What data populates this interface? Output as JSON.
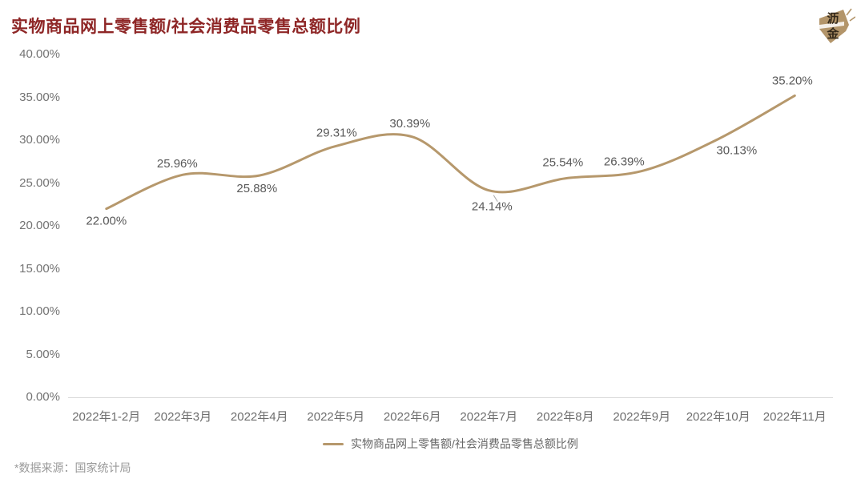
{
  "header": {
    "title": "实物商品网上零售额/社会消费品零售总额比例",
    "logo": {
      "name": "lijin-logo",
      "text_top": "沥",
      "text_bottom": "金",
      "gold": "#b3956a",
      "ink": "#33281a"
    }
  },
  "chart_data": {
    "type": "line",
    "title": "实物商品网上零售额/社会消费品零售总额比例",
    "categories": [
      "2022年1-2月",
      "2022年3月",
      "2022年4月",
      "2022年5月",
      "2022年6月",
      "2022年7月",
      "2022年8月",
      "2022年9月",
      "2022年10月",
      "2022年11月"
    ],
    "series": [
      {
        "name": "实物商品网上零售额/社会消费品零售总额比例",
        "values": [
          22.0,
          25.96,
          25.88,
          29.31,
          30.39,
          24.14,
          25.54,
          26.39,
          30.13,
          35.2
        ],
        "labels": [
          "22.00%",
          "25.96%",
          "25.88%",
          "29.31%",
          "30.39%",
          "24.14%",
          "25.54%",
          "26.39%",
          "30.13%",
          "35.20%"
        ]
      }
    ],
    "ylim": [
      0,
      40
    ],
    "yticks": [
      "40.00%",
      "35.00%",
      "30.00%",
      "25.00%",
      "20.00%",
      "15.00%",
      "10.00%",
      "5.00%",
      "0.00%"
    ],
    "grid": false,
    "smooth": true,
    "legend_position": "bottom"
  },
  "legend": {
    "label": "实物商品网上零售额/社会消费品零售总额比例"
  },
  "footer": {
    "source_note": "*数据来源：国家统计局"
  },
  "colors": {
    "title": "#8e2626",
    "line": "#b6986c",
    "data_label": "#595959",
    "axis_label": "#737373",
    "axis_line": "#d9d9d9",
    "leader_line": "#aaaaaa"
  }
}
